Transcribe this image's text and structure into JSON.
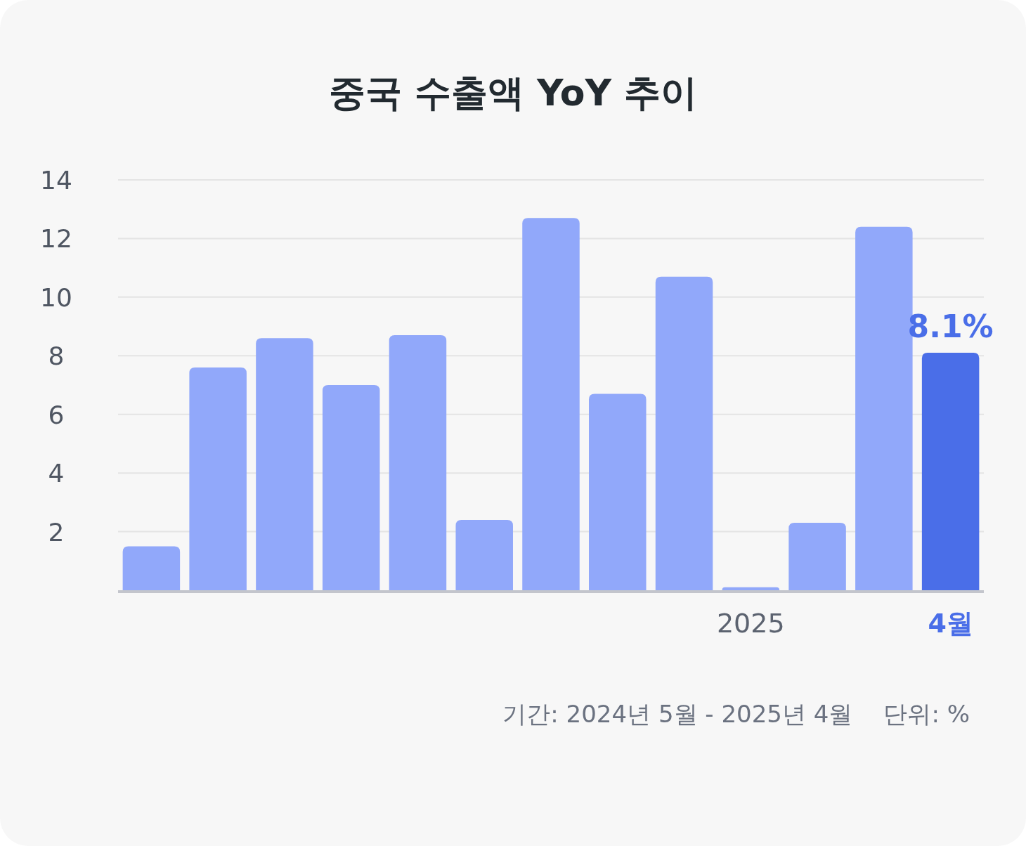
{
  "chart_data": {
    "type": "bar",
    "title": "중국 수출액 YoY 추이",
    "categories": [
      null,
      null,
      null,
      null,
      null,
      null,
      null,
      null,
      null,
      "2025",
      null,
      null,
      "4월"
    ],
    "values": [
      1.5,
      7.6,
      8.6,
      7.0,
      8.7,
      2.4,
      12.7,
      6.7,
      10.7,
      0.1,
      2.3,
      12.4,
      8.1
    ],
    "colors": [
      "#91a8fa",
      "#91a8fa",
      "#91a8fa",
      "#91a8fa",
      "#91a8fa",
      "#91a8fa",
      "#91a8fa",
      "#91a8fa",
      "#91a8fa",
      "#91a8fa",
      "#91a8fa",
      "#91a8fa",
      "#4a6ee8"
    ],
    "value_labels": [
      null,
      null,
      null,
      null,
      null,
      null,
      null,
      null,
      null,
      null,
      null,
      null,
      "8.1%"
    ],
    "ylim": [
      0,
      14
    ],
    "yticks": [
      2,
      4,
      6,
      8,
      10,
      12,
      14
    ],
    "grid": "y",
    "annotations": [
      "기간: 2024년 5월 - 2025년 4월",
      "단위: %"
    ]
  }
}
